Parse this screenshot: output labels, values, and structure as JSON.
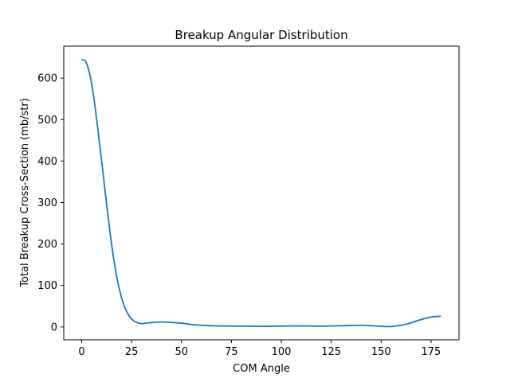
{
  "chart_data": {
    "type": "line",
    "title": "Breakup Angular Distribution",
    "xlabel": "COM Angle",
    "ylabel": "Total Breakup Cross-Section (mb/str)",
    "xlim": [
      -9,
      189
    ],
    "ylim": [
      -31,
      677
    ],
    "xticks": [
      0,
      25,
      50,
      75,
      100,
      125,
      150,
      175
    ],
    "yticks": [
      0,
      100,
      200,
      300,
      400,
      500,
      600
    ],
    "grid": false,
    "line_color": "#1f77b4",
    "series": [
      {
        "x": [
          0,
          2,
          4,
          6,
          8,
          10,
          12,
          14,
          16,
          18,
          20,
          22,
          24,
          26,
          28,
          30,
          32,
          34,
          36,
          40,
          45,
          50,
          55,
          60,
          65,
          70,
          80,
          90,
          100,
          105,
          110,
          120,
          130,
          140,
          145,
          150,
          155,
          160,
          165,
          170,
          175,
          180
        ],
        "y": [
          645,
          640,
          610,
          555,
          480,
          400,
          315,
          235,
          165,
          110,
          70,
          42,
          25,
          15,
          10,
          8,
          9,
          10,
          11,
          12,
          11,
          9,
          6,
          4,
          3,
          2.5,
          2,
          1.5,
          2,
          2.5,
          2.5,
          2,
          3,
          4,
          3,
          1.5,
          1,
          4,
          10,
          18,
          24,
          26
        ]
      }
    ]
  }
}
